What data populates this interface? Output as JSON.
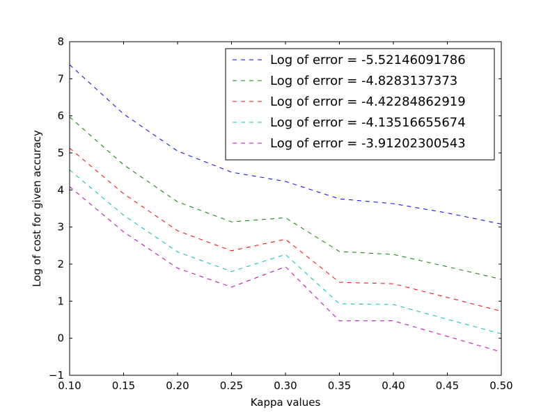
{
  "chart_data": {
    "type": "line",
    "title": "",
    "xlabel": "Kappa values",
    "ylabel": "Log of cost for given accuracy",
    "xlim": [
      0.1,
      0.5
    ],
    "ylim": [
      -1,
      8
    ],
    "xticks": [
      "0.10",
      "0.15",
      "0.20",
      "0.25",
      "0.30",
      "0.35",
      "0.40",
      "0.45",
      "0.50"
    ],
    "yticks": [
      "−1",
      "0",
      "1",
      "2",
      "3",
      "4",
      "5",
      "6",
      "7",
      "8"
    ],
    "grid": false,
    "legend_position": "top-right",
    "line_style": "dashed",
    "x": [
      0.1,
      0.15,
      0.2,
      0.25,
      0.3,
      0.35,
      0.4,
      0.45,
      0.5
    ],
    "series": [
      {
        "name": "Log of error = -5.52146091786",
        "color": "#0000ff",
        "values": [
          7.38,
          6.05,
          5.05,
          4.48,
          4.23,
          3.76,
          3.63,
          3.38,
          3.08
        ]
      },
      {
        "name": "Log of error = -4.8283137373",
        "color": "#008000",
        "values": [
          5.97,
          4.68,
          3.68,
          3.14,
          3.25,
          2.34,
          2.26,
          1.93,
          1.59
        ]
      },
      {
        "name": "Log of error = -4.42284862919",
        "color": "#ff0000",
        "values": [
          5.13,
          3.9,
          2.9,
          2.36,
          2.67,
          1.51,
          1.47,
          1.1,
          0.73
        ]
      },
      {
        "name": "Log of error = -4.13516655674",
        "color": "#00bfbf",
        "values": [
          4.54,
          3.32,
          2.33,
          1.8,
          2.26,
          0.93,
          0.91,
          0.51,
          0.12
        ]
      },
      {
        "name": "Log of error = -3.91202300543",
        "color": "#bf00bf",
        "values": [
          4.09,
          2.87,
          1.89,
          1.38,
          1.93,
          0.47,
          0.47,
          0.05,
          -0.37
        ]
      }
    ]
  }
}
